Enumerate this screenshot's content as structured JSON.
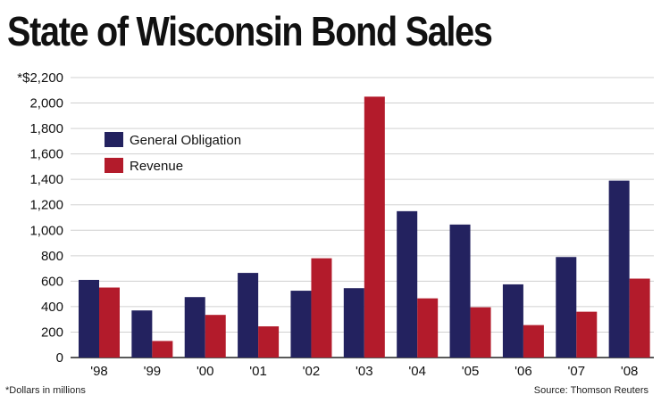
{
  "chart_data": {
    "type": "bar",
    "title": "State of Wisconsin Bond Sales",
    "categories": [
      "'98",
      "'99",
      "'00",
      "'01",
      "'02",
      "'03",
      "'04",
      "'05",
      "'06",
      "'07",
      "'08"
    ],
    "series": [
      {
        "name": "General Obligation",
        "color": "#23225f",
        "values": [
          610,
          370,
          475,
          665,
          525,
          545,
          1150,
          1045,
          575,
          790,
          1390
        ]
      },
      {
        "name": "Revenue",
        "color": "#b31b2b",
        "values": [
          550,
          130,
          335,
          245,
          780,
          2050,
          465,
          395,
          255,
          360,
          620
        ]
      }
    ],
    "ylim": [
      0,
      2200
    ],
    "yticks": [
      {
        "value": 0,
        "label": "0"
      },
      {
        "value": 200,
        "label": "200"
      },
      {
        "value": 400,
        "label": "400"
      },
      {
        "value": 600,
        "label": "600"
      },
      {
        "value": 800,
        "label": "800"
      },
      {
        "value": 1000,
        "label": "1,000"
      },
      {
        "value": 1200,
        "label": "1,200"
      },
      {
        "value": 1400,
        "label": "1,400"
      },
      {
        "value": 1600,
        "label": "1,600"
      },
      {
        "value": 1800,
        "label": "1,800"
      },
      {
        "value": 2000,
        "label": "2,000"
      },
      {
        "value": 2200,
        "label": "*$2,200"
      }
    ],
    "grid": true,
    "legend_position": "top-left",
    "footnote": "*Dollars in millions",
    "source": "Source: Thomson Reuters"
  }
}
